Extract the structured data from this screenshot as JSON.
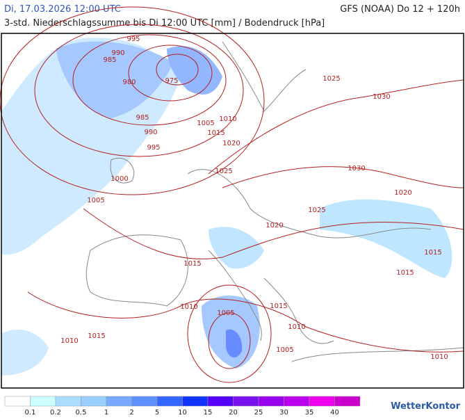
{
  "header": {
    "date": "Di, 17.03.2026 12:00 UTC",
    "model": "GFS (NOAA) Do 12 + 120h",
    "subtitle": "3-std. Niederschlagssumme bis Di 12:00 UTC [mm] / Bodendruck [hPa]"
  },
  "isobar_labels": [
    "995",
    "990",
    "985",
    "980",
    "975",
    "985",
    "990",
    "995",
    "1000",
    "1005",
    "1005",
    "1010",
    "1015",
    "1020",
    "1025",
    "1025",
    "1030",
    "1030",
    "1025",
    "1020",
    "1020",
    "1015",
    "1015",
    "1015",
    "1010",
    "1005",
    "1015",
    "1010",
    "1010",
    "1015",
    "1005",
    "1010"
  ],
  "legend": {
    "colors": [
      "#ffffff",
      "#ccffff",
      "#aaddff",
      "#99ccff",
      "#77aaff",
      "#5f8fff",
      "#3366ff",
      "#1133ff",
      "#5500ff",
      "#7711ee",
      "#9900ee",
      "#bb00ee",
      "#ee00ee",
      "#cc00cc"
    ],
    "labels": [
      "0.1",
      "0.2",
      "0.5",
      "1",
      "2",
      "5",
      "10",
      "15",
      "20",
      "25",
      "30",
      "35",
      "40"
    ]
  },
  "logo": "WetterKontor"
}
